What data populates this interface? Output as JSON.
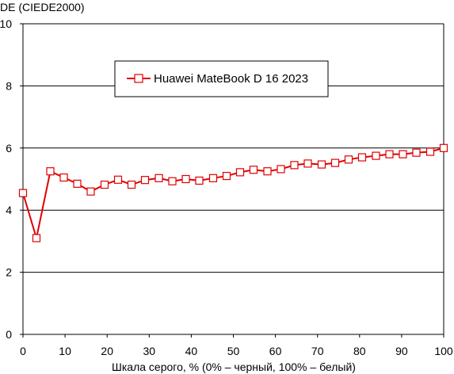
{
  "chart_data": {
    "type": "line",
    "ylabel": "DE (CIEDE2000)",
    "xlabel": "Шкала серого, % (0% – черный, 100% – белый)",
    "xlim": [
      0,
      100
    ],
    "ylim": [
      0,
      10
    ],
    "xticks": [
      0,
      10,
      20,
      30,
      40,
      50,
      60,
      70,
      80,
      90,
      100
    ],
    "yticks": [
      0,
      2,
      4,
      6,
      8,
      10
    ],
    "grid": "horizontal",
    "legend_position": "top-left",
    "series": [
      {
        "name": "Huawei MateBook D 16 2023",
        "color": "#e00000",
        "marker": "square-open",
        "x": [
          0,
          3.2,
          6.5,
          9.7,
          12.9,
          16.1,
          19.4,
          22.6,
          25.8,
          29.0,
          32.3,
          35.5,
          38.7,
          41.9,
          45.2,
          48.4,
          51.6,
          54.8,
          58.1,
          61.3,
          64.5,
          67.7,
          71.0,
          74.2,
          77.4,
          80.6,
          83.9,
          87.1,
          90.3,
          93.5,
          96.8,
          100
        ],
        "y": [
          4.55,
          3.1,
          5.25,
          5.05,
          4.85,
          4.6,
          4.82,
          4.98,
          4.82,
          4.97,
          5.03,
          4.93,
          5.0,
          4.95,
          5.03,
          5.1,
          5.22,
          5.3,
          5.25,
          5.32,
          5.45,
          5.5,
          5.47,
          5.52,
          5.63,
          5.7,
          5.75,
          5.8,
          5.8,
          5.85,
          5.88,
          6.0
        ]
      }
    ]
  }
}
